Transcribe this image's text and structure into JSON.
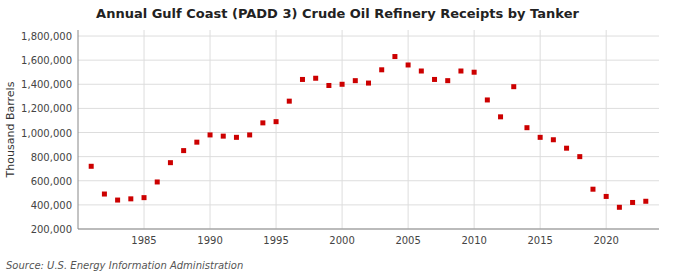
{
  "chart_data": {
    "type": "scatter",
    "title": "Annual Gulf Coast (PADD 3) Crude Oil Refinery Receipts by Tanker",
    "y_label": "Thousand Barrels",
    "source": "Source: U.S. Energy Information Administration",
    "color": "#cc0000",
    "marker": "square",
    "grid": true,
    "x": [
      1981,
      1982,
      1983,
      1984,
      1985,
      1986,
      1987,
      1988,
      1989,
      1990,
      1991,
      1992,
      1993,
      1994,
      1995,
      1996,
      1997,
      1998,
      1999,
      2000,
      2001,
      2002,
      2003,
      2004,
      2005,
      2006,
      2007,
      2008,
      2009,
      2010,
      2011,
      2012,
      2013,
      2014,
      2015,
      2016,
      2017,
      2018,
      2019,
      2020,
      2021,
      2022,
      2023
    ],
    "values": [
      720000,
      490000,
      440000,
      450000,
      460000,
      590000,
      750000,
      850000,
      920000,
      980000,
      970000,
      960000,
      980000,
      1080000,
      1090000,
      1260000,
      1440000,
      1450000,
      1390000,
      1400000,
      1430000,
      1410000,
      1520000,
      1630000,
      1560000,
      1510000,
      1440000,
      1430000,
      1510000,
      1500000,
      1270000,
      1130000,
      1380000,
      1040000,
      960000,
      940000,
      870000,
      800000,
      530000,
      470000,
      380000,
      420000,
      430000
    ],
    "xlim": [
      1980,
      2024
    ],
    "xticks": [
      1985,
      1990,
      1995,
      2000,
      2005,
      2010,
      2015,
      2020
    ],
    "ylim": [
      200000,
      1850000
    ],
    "yticks": [
      {
        "value": 200000,
        "label": "200,000"
      },
      {
        "value": 400000,
        "label": "400,000"
      },
      {
        "value": 600000,
        "label": "600,000"
      },
      {
        "value": 800000,
        "label": "800,000"
      },
      {
        "value": 1000000,
        "label": "1,000,000"
      },
      {
        "value": 1200000,
        "label": "1,200,000"
      },
      {
        "value": 1400000,
        "label": "1,400,000"
      },
      {
        "value": 1600000,
        "label": "1,600,000"
      },
      {
        "value": 1800000,
        "label": "1,800,000"
      }
    ]
  }
}
